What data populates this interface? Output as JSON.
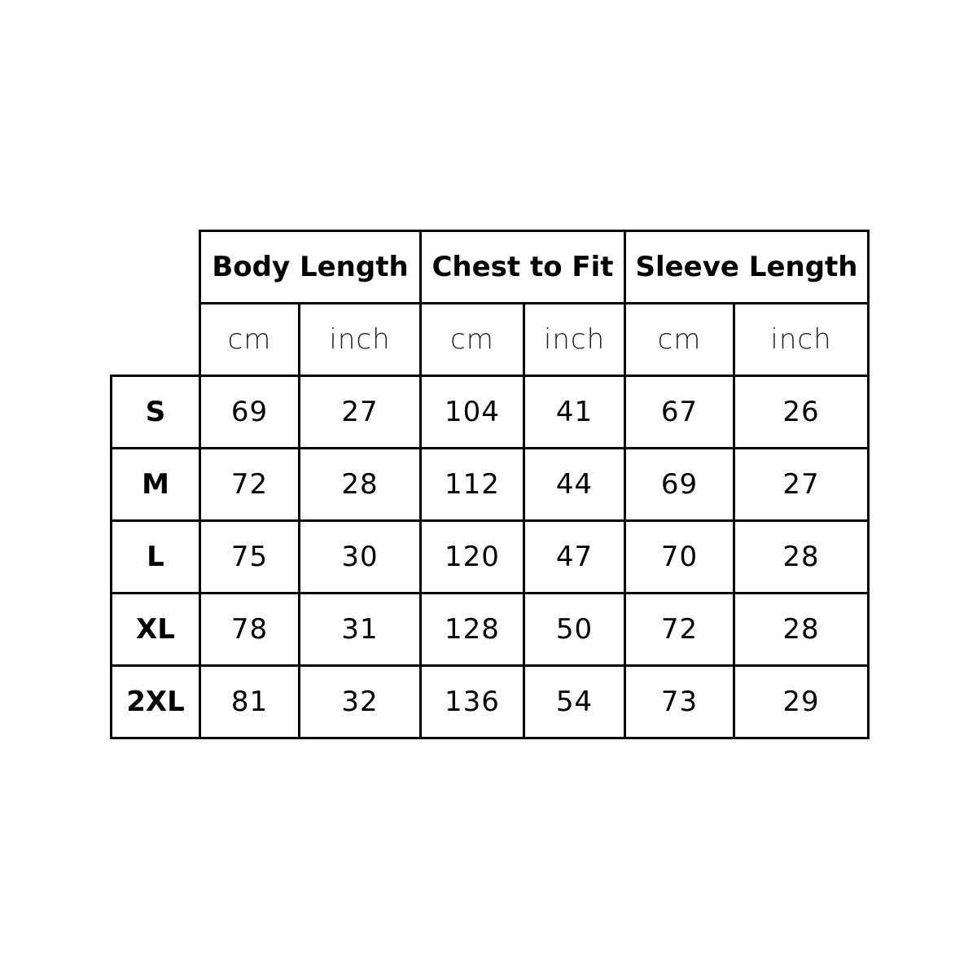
{
  "groups": [
    "Body Length",
    "Chest to Fit",
    "Sleeve Length"
  ],
  "units": [
    "cm",
    "inch",
    "cm",
    "inch",
    "cm",
    "inch"
  ],
  "rows": [
    {
      "size": "S",
      "values": [
        "69",
        "27",
        "104",
        "41",
        "67",
        "26"
      ]
    },
    {
      "size": "M",
      "values": [
        "72",
        "28",
        "112",
        "44",
        "69",
        "27"
      ]
    },
    {
      "size": "L",
      "values": [
        "75",
        "30",
        "120",
        "47",
        "70",
        "28"
      ]
    },
    {
      "size": "XL",
      "values": [
        "78",
        "31",
        "128",
        "50",
        "72",
        "28"
      ]
    },
    {
      "size": "2XL",
      "values": [
        "81",
        "32",
        "136",
        "54",
        "73",
        "29"
      ]
    }
  ]
}
